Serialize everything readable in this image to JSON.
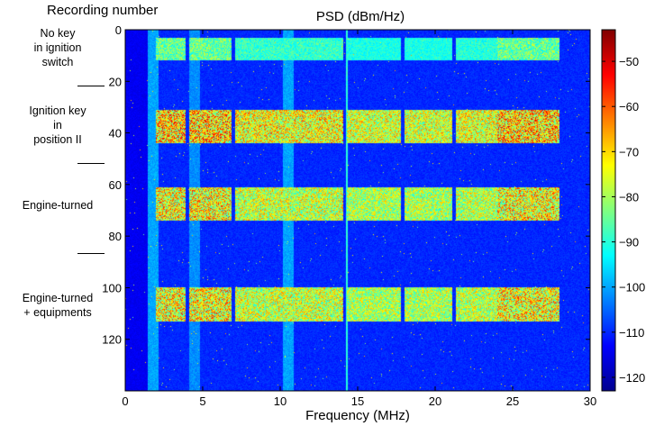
{
  "chart_data": {
    "type": "heatmap",
    "title": "PSD (dBm/Hz)",
    "xlabel": "Frequency (MHz)",
    "ylabel": "Recording number",
    "xlim": [
      0,
      30
    ],
    "ylim": [
      0,
      140
    ],
    "y_reversed": true,
    "xticks": [
      0,
      5,
      10,
      15,
      20,
      25,
      30
    ],
    "yticks": [
      0,
      20,
      40,
      60,
      80,
      100,
      120
    ],
    "colorbar": {
      "colormap": "jet",
      "range": [
        -123,
        -43
      ],
      "ticks": [
        -50,
        -60,
        -70,
        -80,
        -90,
        -100,
        -110,
        -120
      ]
    },
    "background_level_dbm_hz": -110,
    "vertical_lines": [
      {
        "freq_mhz": 1.8,
        "level_dbm_hz": -100
      },
      {
        "freq_mhz": 4.5,
        "level_dbm_hz": -102
      },
      {
        "freq_mhz": 10.5,
        "level_dbm_hz": -100
      },
      {
        "freq_mhz": 14.3,
        "level_dbm_hz": -90
      }
    ],
    "activity_blocks": [
      {
        "group": "No key in ignition switch",
        "recordings": [
          3,
          12
        ],
        "freq_range_mhz": [
          2.0,
          28.0
        ],
        "min_level": -95,
        "max_level": -75
      },
      {
        "group": "Ignition key in position II",
        "recordings": [
          31,
          44
        ],
        "freq_range_mhz": [
          2.0,
          28.0
        ],
        "min_level": -90,
        "max_level": -50
      },
      {
        "group": "Engine-turned",
        "recordings": [
          61,
          74
        ],
        "freq_range_mhz": [
          2.0,
          28.0
        ],
        "min_level": -92,
        "max_level": -55
      },
      {
        "group": "Engine-turned + equipments",
        "recordings": [
          100,
          113
        ],
        "freq_range_mhz": [
          2.0,
          28.0
        ],
        "min_level": -92,
        "max_level": -55
      }
    ],
    "block_gaps_mhz": [
      4.0,
      7.0,
      14.2,
      17.9,
      21.2
    ],
    "groups": [
      {
        "label": "No key\nin ignition\nswitch",
        "center": 7
      },
      {
        "label": "Ignition key\nin\nposition II",
        "center": 37
      },
      {
        "label": "Engine-turned",
        "center": 68
      },
      {
        "label": "Engine-turned\n+ equipments",
        "center": 107
      }
    ],
    "separators": [
      21.5,
      51.5,
      86.5
    ]
  }
}
